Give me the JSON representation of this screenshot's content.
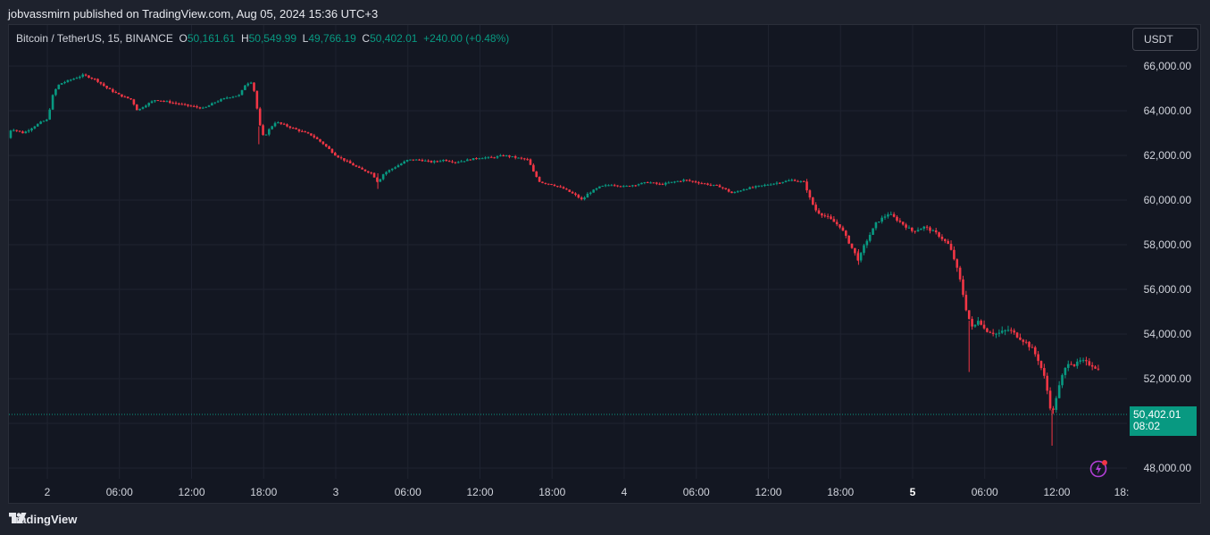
{
  "header": {
    "publish_text": "jobvassmirn published on TradingView.com, Aug 05, 2024 15:36 UTC+3"
  },
  "legend": {
    "symbol": "Bitcoin / TetherUS, 15, BINANCE",
    "open_label": "O",
    "open": "50,161.61",
    "high_label": "H",
    "high": "50,549.99",
    "low_label": "L",
    "low": "49,766.19",
    "close_label": "C",
    "close": "50,402.01",
    "change": "+240.00 (+0.48%)"
  },
  "currency_button": {
    "label": "USDT"
  },
  "price_tag": {
    "price": "50,402.01",
    "countdown": "08:02"
  },
  "footer": {
    "brand": "TradingView"
  },
  "colors": {
    "up": "#089981",
    "down": "#f23645",
    "background": "#131722",
    "grid": "#1f2330",
    "accent_icon": "#e040fb"
  },
  "chart_data": {
    "type": "candlestick",
    "title": "Bitcoin / TetherUS, 15, BINANCE",
    "ylim": [
      47000,
      67800
    ],
    "yticks": [
      48000,
      50000,
      52000,
      54000,
      56000,
      58000,
      60000,
      62000,
      64000,
      66000
    ],
    "ytick_labels": [
      "48,000.00",
      "50,000.00",
      "52,000.00",
      "54,000.00",
      "56,000.00",
      "58,000.00",
      "60,000.00",
      "62,000.00",
      "64,000.00",
      "66,000.00"
    ],
    "xticks": [
      "2",
      "06:00",
      "12:00",
      "18:00",
      "3",
      "06:00",
      "12:00",
      "18:00",
      "4",
      "06:00",
      "12:00",
      "18:00",
      "5",
      "06:00",
      "12:00",
      "18:"
    ],
    "xtick_bold": [
      false,
      false,
      false,
      false,
      false,
      false,
      false,
      false,
      false,
      false,
      false,
      false,
      true,
      false,
      false,
      false
    ],
    "x_unit": "hours since Aug 2 00:00",
    "last_price": 50402.01,
    "anchors": [
      [
        -3.5,
        62500
      ],
      [
        -3.0,
        63200
      ],
      [
        -2.0,
        63000
      ],
      [
        -0.5,
        63500
      ],
      [
        0,
        63600
      ],
      [
        0.5,
        64800
      ],
      [
        1.0,
        65200
      ],
      [
        2.0,
        65400
      ],
      [
        3.0,
        65600
      ],
      [
        4.0,
        65400
      ],
      [
        5.0,
        65000
      ],
      [
        6.0,
        64700
      ],
      [
        7.0,
        64500
      ],
      [
        7.5,
        64000
      ],
      [
        8.0,
        64200
      ],
      [
        9.0,
        64500
      ],
      [
        10.0,
        64400
      ],
      [
        11.0,
        64300
      ],
      [
        12.0,
        64200
      ],
      [
        13.0,
        64100
      ],
      [
        14.0,
        64400
      ],
      [
        15.0,
        64600
      ],
      [
        16.0,
        64700
      ],
      [
        16.5,
        65200
      ],
      [
        17.0,
        65300
      ],
      [
        17.3,
        64700
      ],
      [
        17.6,
        63500
      ],
      [
        18.0,
        62800
      ],
      [
        18.5,
        63200
      ],
      [
        19.0,
        63500
      ],
      [
        20.0,
        63300
      ],
      [
        21.0,
        63100
      ],
      [
        22.0,
        62900
      ],
      [
        23.0,
        62500
      ],
      [
        24.0,
        62000
      ],
      [
        25.0,
        61700
      ],
      [
        26.0,
        61400
      ],
      [
        27.0,
        61200
      ],
      [
        27.5,
        60800
      ],
      [
        28.0,
        61200
      ],
      [
        29.0,
        61500
      ],
      [
        30.0,
        61800
      ],
      [
        31.0,
        61800
      ],
      [
        32.0,
        61700
      ],
      [
        33.0,
        61800
      ],
      [
        34.0,
        61700
      ],
      [
        35.0,
        61800
      ],
      [
        36.0,
        61900
      ],
      [
        37.0,
        61900
      ],
      [
        38.0,
        62000
      ],
      [
        39.0,
        61900
      ],
      [
        40.0,
        61800
      ],
      [
        40.5,
        61200
      ],
      [
        41.0,
        60800
      ],
      [
        42.0,
        60700
      ],
      [
        43.0,
        60500
      ],
      [
        44.0,
        60200
      ],
      [
        44.5,
        60000
      ],
      [
        45.0,
        60300
      ],
      [
        46.0,
        60600
      ],
      [
        47.0,
        60700
      ],
      [
        48.0,
        60600
      ],
      [
        49.0,
        60700
      ],
      [
        50.0,
        60800
      ],
      [
        51.0,
        60700
      ],
      [
        52.0,
        60800
      ],
      [
        53.0,
        60900
      ],
      [
        54.0,
        60800
      ],
      [
        55.0,
        60700
      ],
      [
        56.0,
        60600
      ],
      [
        57.0,
        60300
      ],
      [
        58.0,
        60500
      ],
      [
        59.0,
        60600
      ],
      [
        60.0,
        60700
      ],
      [
        61.0,
        60800
      ],
      [
        62.0,
        60900
      ],
      [
        63.0,
        60800
      ],
      [
        63.5,
        60000
      ],
      [
        64.0,
        59500
      ],
      [
        65.0,
        59200
      ],
      [
        66.0,
        58800
      ],
      [
        67.0,
        57800
      ],
      [
        67.5,
        57300
      ],
      [
        68.0,
        58000
      ],
      [
        69.0,
        59000
      ],
      [
        70.0,
        59400
      ],
      [
        71.0,
        59000
      ],
      [
        72.0,
        58600
      ],
      [
        73.0,
        58800
      ],
      [
        74.0,
        58500
      ],
      [
        75.0,
        58000
      ],
      [
        75.5,
        57300
      ],
      [
        76.0,
        56300
      ],
      [
        76.5,
        55000
      ],
      [
        77.0,
        54200
      ],
      [
        77.5,
        54700
      ],
      [
        78.0,
        54200
      ],
      [
        79.0,
        54000
      ],
      [
        80.0,
        54200
      ],
      [
        81.0,
        53800
      ],
      [
        81.5,
        53600
      ],
      [
        82.0,
        53300
      ],
      [
        82.5,
        52800
      ],
      [
        83.0,
        52000
      ],
      [
        83.3,
        51200
      ],
      [
        83.6,
        50300
      ],
      [
        84.0,
        51300
      ],
      [
        84.5,
        52200
      ],
      [
        85.0,
        52800
      ],
      [
        85.5,
        52600
      ],
      [
        86.0,
        52800
      ],
      [
        86.5,
        52700
      ],
      [
        87.0,
        52600
      ],
      [
        87.5,
        52400
      ],
      [
        88.0,
        51900
      ],
      [
        88.5,
        51600
      ],
      [
        89.0,
        51500
      ],
      [
        89.3,
        51100
      ],
      [
        89.7,
        50700
      ],
      [
        90.0,
        50402
      ]
    ]
  }
}
